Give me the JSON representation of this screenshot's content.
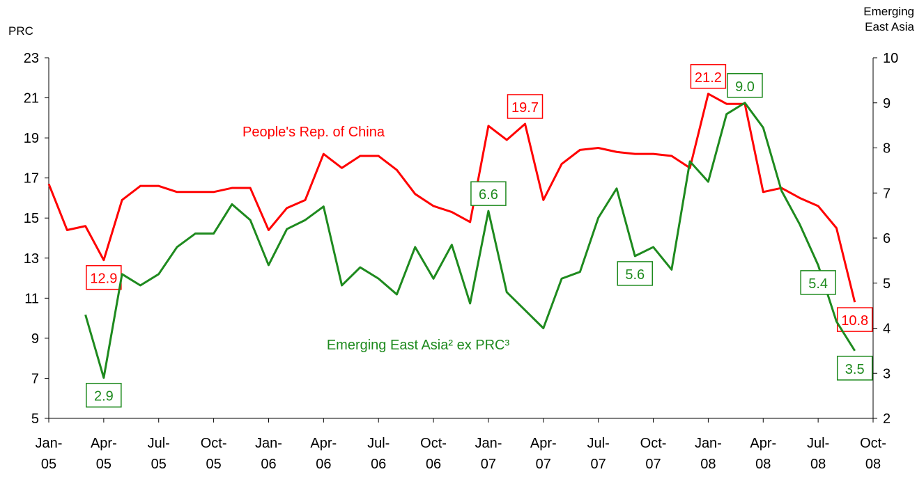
{
  "chart_data": {
    "type": "line",
    "ylabel": "PRC",
    "y2label": "Emerging East Asia",
    "categories": [
      "Jan-05",
      null,
      null,
      "Apr-05",
      null,
      null,
      "Jul-05",
      null,
      null,
      "Oct-05",
      null,
      null,
      "Jan-06",
      null,
      null,
      "Apr-06",
      null,
      null,
      "Jul-06",
      null,
      null,
      "Oct-06",
      null,
      null,
      "Jan-07",
      null,
      null,
      "Apr-07",
      null,
      null,
      "Jul-07",
      null,
      null,
      "Oct-07",
      null,
      null,
      "Jan-08",
      null,
      null,
      "Apr-08",
      null,
      null,
      "Jul-08",
      null,
      null,
      "Oct-08"
    ],
    "ylim": [
      5,
      23
    ],
    "yticks": [
      5,
      7,
      9,
      11,
      13,
      15,
      17,
      19,
      21,
      23
    ],
    "y2lim": [
      2,
      10
    ],
    "y2ticks": [
      2,
      3,
      4,
      5,
      6,
      7,
      8,
      9,
      10
    ],
    "grid": false,
    "series": [
      {
        "name": "People's Rep. of China",
        "color": "#ff0000",
        "values": [
          16.7,
          14.4,
          14.6,
          12.9,
          15.9,
          16.6,
          16.6,
          16.3,
          16.3,
          16.3,
          16.5,
          16.5,
          14.4,
          15.5,
          15.9,
          18.2,
          17.5,
          18.1,
          18.1,
          17.4,
          16.2,
          15.6,
          15.3,
          14.8,
          19.6,
          18.9,
          19.7,
          15.9,
          17.7,
          18.4,
          18.5,
          18.3,
          18.2,
          18.2,
          18.1,
          17.5,
          21.2,
          20.7,
          20.7,
          16.3,
          16.5,
          16.0,
          15.6,
          14.5,
          10.8,
          null
        ],
        "value_labels": [
          null,
          null,
          null,
          "12.9",
          null,
          null,
          null,
          null,
          null,
          null,
          null,
          null,
          null,
          null,
          null,
          null,
          null,
          null,
          null,
          null,
          null,
          null,
          null,
          null,
          null,
          null,
          "19.7",
          null,
          null,
          null,
          null,
          null,
          null,
          null,
          null,
          null,
          "21.2",
          null,
          null,
          null,
          null,
          null,
          null,
          null,
          "10.8",
          null
        ]
      },
      {
        "name": "Emerging East Asia² ex PRC³",
        "color": "#1e8a1e",
        "axis": "y2",
        "values": [
          null,
          null,
          4.3,
          2.9,
          5.2,
          4.95,
          5.2,
          5.8,
          6.1,
          6.1,
          6.75,
          6.4,
          5.4,
          6.2,
          6.4,
          6.7,
          4.95,
          5.35,
          5.1,
          4.75,
          5.8,
          5.1,
          5.85,
          4.55,
          6.6,
          4.8,
          4.4,
          4.0,
          5.1,
          5.25,
          6.45,
          7.1,
          5.6,
          5.8,
          5.3,
          7.7,
          7.25,
          8.75,
          9.0,
          8.45,
          7.05,
          6.3,
          5.4,
          4.15,
          3.5,
          null
        ],
        "value_labels": [
          null,
          null,
          null,
          "2.9",
          null,
          null,
          null,
          null,
          null,
          null,
          null,
          null,
          null,
          null,
          null,
          null,
          null,
          null,
          null,
          null,
          null,
          null,
          null,
          null,
          "6.6",
          null,
          null,
          null,
          null,
          null,
          null,
          null,
          "5.6",
          null,
          null,
          null,
          null,
          null,
          "9.0",
          null,
          null,
          null,
          "5.4",
          null,
          "3.5",
          null
        ]
      }
    ]
  }
}
